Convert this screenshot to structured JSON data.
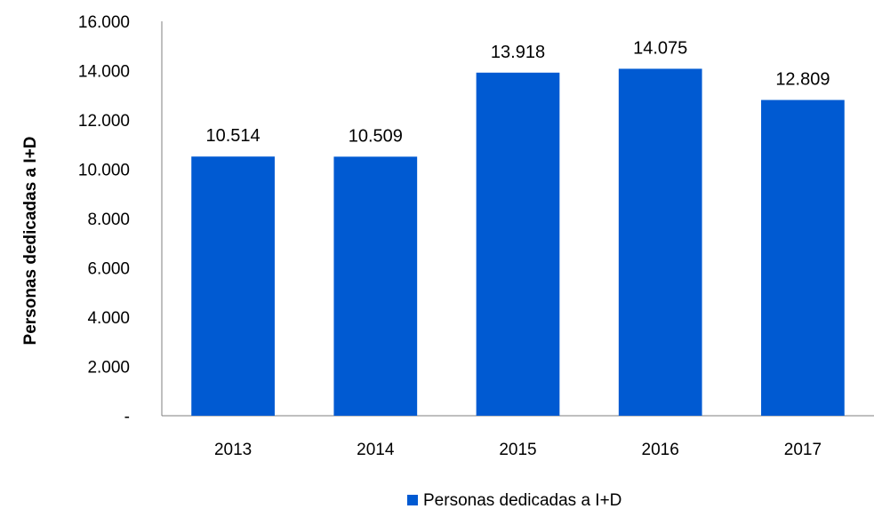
{
  "chart_data": {
    "type": "bar",
    "categories": [
      "2013",
      "2014",
      "2015",
      "2016",
      "2017"
    ],
    "series": [
      {
        "name": "Personas dedicadas a I+D",
        "values": [
          10514,
          10509,
          13918,
          14075,
          12809
        ],
        "data_labels": [
          "10.514",
          "10.509",
          "13.918",
          "14.075",
          "12.809"
        ],
        "color": "#005AD2"
      }
    ],
    "ylabel": "Personas dedicadas a I+D",
    "xlabel": "",
    "ylim": [
      0,
      16000
    ],
    "y_ticks": [
      0,
      2000,
      4000,
      6000,
      8000,
      10000,
      12000,
      14000,
      16000
    ],
    "y_tick_labels": [
      "-",
      "2.000",
      "4.000",
      "6.000",
      "8.000",
      "10.000",
      "12.000",
      "14.000",
      "16.000"
    ],
    "grid": false,
    "legend_position": "bottom"
  }
}
